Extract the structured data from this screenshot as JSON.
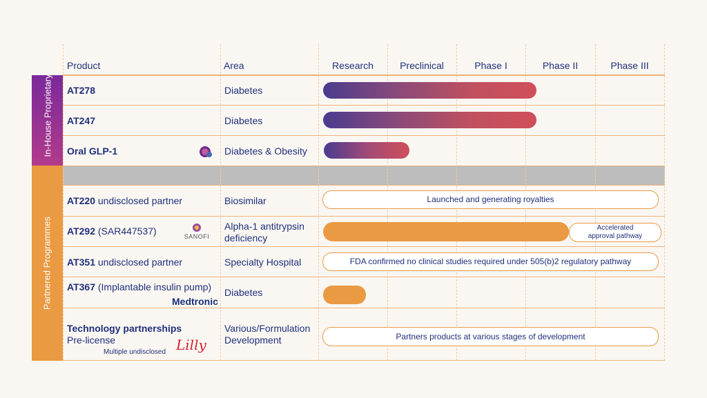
{
  "headers": [
    "Product",
    "Area",
    "Research",
    "Preclinical",
    "Phase I",
    "Phase II",
    "Phase III"
  ],
  "groups": {
    "inhouse": "In-House Proprietary",
    "partnered": "Partnered Programmes"
  },
  "rows": [
    {
      "product_bold": "AT278",
      "product_rest": "",
      "area": "Diabetes"
    },
    {
      "product_bold": "AT247",
      "product_rest": "",
      "area": "Diabetes"
    },
    {
      "product_bold": "Oral GLP-1",
      "product_rest": "",
      "area": "Diabetes & Obesity"
    },
    {
      "product_bold": "AT220",
      "product_rest": " undisclosed partner",
      "area": "Biosimilar"
    },
    {
      "product_bold": "AT292",
      "product_rest": " (SAR447537)",
      "area_l1": "Alpha-1  antitrypsin",
      "area_l2": "deficiency"
    },
    {
      "product_bold": "AT351",
      "product_rest": " undisclosed partner",
      "area": "Specialty Hospital"
    },
    {
      "product_bold": "AT367",
      "product_rest": " (Implantable insulin pump)",
      "area": "Diabetes"
    },
    {
      "product_bold": "Technology partnerships",
      "product_l2": "Pre-license",
      "product_l3": "Multiple undisclosed",
      "area_l1": "Various/Formulation",
      "area_l2": "Development"
    }
  ],
  "partners": {
    "sanofi": "SANOFI",
    "medtronic": "Medtronic",
    "lilly": "Lilly"
  },
  "pills": {
    "at220": "Launched and generating royalties",
    "at292_l1": "Accelerated",
    "at292_l2": "approval pathway",
    "at351": "FDA confirmed no clinical studies required under 505(b)2 regulatory  pathway",
    "tech": "Partners products at various stages of development"
  },
  "colors": {
    "purple": "#7a2a8e",
    "magenta": "#b83a8a",
    "orange": "#ea9a42",
    "navy": "#1f2f7a",
    "grey_band": "#bdbdbd"
  }
}
